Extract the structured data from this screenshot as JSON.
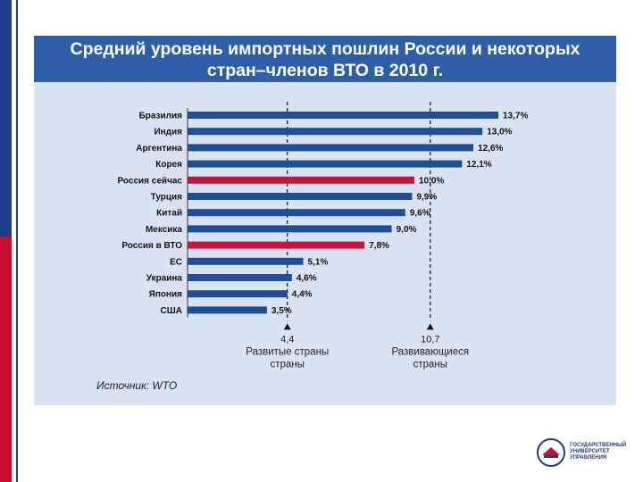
{
  "title": {
    "line1": "Средний уровень импортных пошлин России и некоторых",
    "line2": "стран–членов ВТО в 2010 г."
  },
  "source": "Источник: WTO",
  "logo": {
    "line1": "ГОСУДАРСТВЕННЫЙ",
    "line2": "УНИВЕРСИТЕТ",
    "line3": "УПРАВЛЕНИЯ"
  },
  "colors": {
    "bar_default": "#1f4e96",
    "bar_highlight": "#c4163f",
    "panel": "#d8e4f4",
    "title_bg": "#2e5ea8"
  },
  "chart_data": {
    "type": "bar",
    "orientation": "horizontal",
    "categories": [
      "Бразилия",
      "Индия",
      "Аргентина",
      "Корея",
      "Россия сейчас",
      "Турция",
      "Китай",
      "Мексика",
      "Россия в ВТО",
      "ЕС",
      "Украина",
      "Япония",
      "США"
    ],
    "values": [
      13.7,
      13.0,
      12.6,
      12.1,
      10.0,
      9.9,
      9.6,
      9.0,
      7.8,
      5.1,
      4.6,
      4.4,
      3.5
    ],
    "value_labels": [
      "13,7%",
      "13,0%",
      "12,6%",
      "12,1%",
      "10,0%",
      "9,9%",
      "9,6%",
      "9,0%",
      "7,8%",
      "5,1%",
      "4,6%",
      "4,4%",
      "3,5%"
    ],
    "highlight": [
      "Россия сейчас",
      "Россия в ВТО"
    ],
    "xlim": [
      0,
      13.7
    ],
    "reference_lines": [
      {
        "value": 4.4,
        "value_label": "4,4",
        "label_lines": [
          "Развитые страны",
          "страны"
        ]
      },
      {
        "value": 10.7,
        "value_label": "10,7",
        "label_lines": [
          "Развивающиеся",
          "страны"
        ]
      }
    ],
    "grid": false,
    "legend": "none"
  }
}
